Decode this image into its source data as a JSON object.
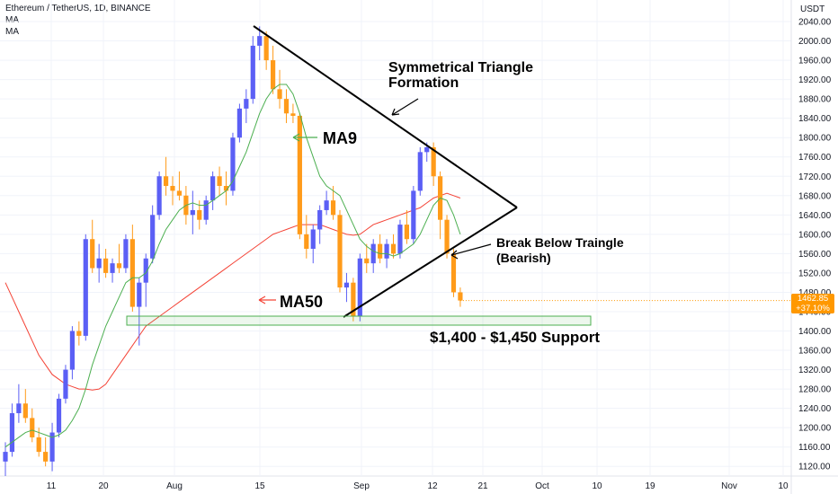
{
  "header": {
    "title": "Ethereum / TetherUS, 1D, BINANCE",
    "ma1": "MA",
    "ma2": "MA"
  },
  "axis": {
    "unit": "USDT",
    "price_label": "1462.85",
    "price_change": "+37.10%"
  },
  "colors": {
    "up": "#5b5ff5",
    "down": "#ff9b1a",
    "ma9": "#4caf50",
    "ma50": "#f44336",
    "support": "#4caf50",
    "price_tag": "#ff9800",
    "bearish": "#e8542a"
  },
  "annotations": {
    "triangle_title_1": "Symmetrical Triangle",
    "triangle_title_2": "Formation",
    "ma9": "MA9",
    "ma50": "MA50",
    "break": "Break Below Traingle",
    "bearish": "(Bearish)",
    "support": "$1,400 - $1,450 Support"
  },
  "chart_data": {
    "type": "candlestick",
    "title": "Ethereum / TetherUS, 1D, BINANCE",
    "ylim": [
      1100,
      2060
    ],
    "y_ticks": [
      2040,
      2000,
      1960,
      1920,
      1880,
      1840,
      1800,
      1760,
      1720,
      1680,
      1640,
      1600,
      1560,
      1520,
      1480,
      1440,
      1400,
      1360,
      1320,
      1280,
      1240,
      1200,
      1160,
      1120
    ],
    "x_tick_labels": [
      "11",
      "20",
      "Aug",
      "15",
      "Sep",
      "12",
      "21",
      "Oct",
      "10",
      "19",
      "Nov",
      "10"
    ],
    "candles": [
      {
        "o": 1130,
        "h": 1170,
        "l": 1100,
        "c": 1150
      },
      {
        "o": 1150,
        "h": 1250,
        "l": 1140,
        "c": 1230
      },
      {
        "o": 1230,
        "h": 1290,
        "l": 1210,
        "c": 1250
      },
      {
        "o": 1250,
        "h": 1280,
        "l": 1210,
        "c": 1220
      },
      {
        "o": 1220,
        "h": 1240,
        "l": 1170,
        "c": 1180
      },
      {
        "o": 1180,
        "h": 1200,
        "l": 1140,
        "c": 1150
      },
      {
        "o": 1150,
        "h": 1180,
        "l": 1120,
        "c": 1130
      },
      {
        "o": 1130,
        "h": 1210,
        "l": 1110,
        "c": 1190
      },
      {
        "o": 1190,
        "h": 1270,
        "l": 1180,
        "c": 1260
      },
      {
        "o": 1260,
        "h": 1330,
        "l": 1250,
        "c": 1320
      },
      {
        "o": 1320,
        "h": 1410,
        "l": 1300,
        "c": 1400
      },
      {
        "o": 1400,
        "h": 1420,
        "l": 1370,
        "c": 1390
      },
      {
        "o": 1390,
        "h": 1600,
        "l": 1380,
        "c": 1590
      },
      {
        "o": 1590,
        "h": 1630,
        "l": 1520,
        "c": 1530
      },
      {
        "o": 1530,
        "h": 1580,
        "l": 1500,
        "c": 1550
      },
      {
        "o": 1550,
        "h": 1570,
        "l": 1510,
        "c": 1520
      },
      {
        "o": 1520,
        "h": 1550,
        "l": 1500,
        "c": 1540
      },
      {
        "o": 1540,
        "h": 1580,
        "l": 1520,
        "c": 1530
      },
      {
        "o": 1530,
        "h": 1600,
        "l": 1520,
        "c": 1590
      },
      {
        "o": 1590,
        "h": 1620,
        "l": 1440,
        "c": 1450
      },
      {
        "o": 1450,
        "h": 1510,
        "l": 1370,
        "c": 1500
      },
      {
        "o": 1500,
        "h": 1560,
        "l": 1450,
        "c": 1550
      },
      {
        "o": 1550,
        "h": 1660,
        "l": 1540,
        "c": 1640
      },
      {
        "o": 1640,
        "h": 1730,
        "l": 1630,
        "c": 1720
      },
      {
        "o": 1720,
        "h": 1760,
        "l": 1680,
        "c": 1700
      },
      {
        "o": 1700,
        "h": 1720,
        "l": 1660,
        "c": 1690
      },
      {
        "o": 1690,
        "h": 1730,
        "l": 1670,
        "c": 1680
      },
      {
        "o": 1680,
        "h": 1700,
        "l": 1620,
        "c": 1640
      },
      {
        "o": 1640,
        "h": 1690,
        "l": 1600,
        "c": 1650
      },
      {
        "o": 1650,
        "h": 1670,
        "l": 1610,
        "c": 1630
      },
      {
        "o": 1630,
        "h": 1680,
        "l": 1620,
        "c": 1670
      },
      {
        "o": 1670,
        "h": 1730,
        "l": 1650,
        "c": 1720
      },
      {
        "o": 1720,
        "h": 1740,
        "l": 1680,
        "c": 1700
      },
      {
        "o": 1700,
        "h": 1730,
        "l": 1660,
        "c": 1690
      },
      {
        "o": 1690,
        "h": 1810,
        "l": 1680,
        "c": 1800
      },
      {
        "o": 1800,
        "h": 1870,
        "l": 1790,
        "c": 1860
      },
      {
        "o": 1860,
        "h": 1900,
        "l": 1830,
        "c": 1880
      },
      {
        "o": 1880,
        "h": 2010,
        "l": 1870,
        "c": 1990
      },
      {
        "o": 1990,
        "h": 2030,
        "l": 1960,
        "c": 2010
      },
      {
        "o": 2010,
        "h": 2020,
        "l": 1940,
        "c": 1960
      },
      {
        "o": 1960,
        "h": 1990,
        "l": 1890,
        "c": 1900
      },
      {
        "o": 1900,
        "h": 1940,
        "l": 1860,
        "c": 1880
      },
      {
        "o": 1880,
        "h": 1900,
        "l": 1830,
        "c": 1850
      },
      {
        "o": 1850,
        "h": 1870,
        "l": 1830,
        "c": 1845
      },
      {
        "o": 1845,
        "h": 1850,
        "l": 1590,
        "c": 1600
      },
      {
        "o": 1600,
        "h": 1640,
        "l": 1550,
        "c": 1570
      },
      {
        "o": 1570,
        "h": 1620,
        "l": 1540,
        "c": 1610
      },
      {
        "o": 1610,
        "h": 1660,
        "l": 1580,
        "c": 1650
      },
      {
        "o": 1650,
        "h": 1690,
        "l": 1640,
        "c": 1670
      },
      {
        "o": 1670,
        "h": 1700,
        "l": 1630,
        "c": 1640
      },
      {
        "o": 1640,
        "h": 1650,
        "l": 1480,
        "c": 1490
      },
      {
        "o": 1490,
        "h": 1520,
        "l": 1460,
        "c": 1500
      },
      {
        "o": 1500,
        "h": 1510,
        "l": 1420,
        "c": 1430
      },
      {
        "o": 1430,
        "h": 1560,
        "l": 1420,
        "c": 1550
      },
      {
        "o": 1550,
        "h": 1580,
        "l": 1520,
        "c": 1540
      },
      {
        "o": 1540,
        "h": 1590,
        "l": 1520,
        "c": 1580
      },
      {
        "o": 1580,
        "h": 1600,
        "l": 1540,
        "c": 1550
      },
      {
        "o": 1550,
        "h": 1590,
        "l": 1530,
        "c": 1580
      },
      {
        "o": 1580,
        "h": 1600,
        "l": 1550,
        "c": 1560
      },
      {
        "o": 1560,
        "h": 1630,
        "l": 1550,
        "c": 1620
      },
      {
        "o": 1620,
        "h": 1650,
        "l": 1580,
        "c": 1590
      },
      {
        "o": 1590,
        "h": 1700,
        "l": 1580,
        "c": 1690
      },
      {
        "o": 1690,
        "h": 1780,
        "l": 1680,
        "c": 1770
      },
      {
        "o": 1770,
        "h": 1790,
        "l": 1750,
        "c": 1780
      },
      {
        "o": 1780,
        "h": 1790,
        "l": 1700,
        "c": 1720
      },
      {
        "o": 1720,
        "h": 1730,
        "l": 1590,
        "c": 1630
      },
      {
        "o": 1630,
        "h": 1640,
        "l": 1550,
        "c": 1560
      },
      {
        "o": 1560,
        "h": 1570,
        "l": 1470,
        "c": 1480
      },
      {
        "o": 1480,
        "h": 1490,
        "l": 1450,
        "c": 1463
      }
    ],
    "series": [
      {
        "name": "MA",
        "values": [
          1160,
          1170,
          1180,
          1190,
          1195,
          1190,
          1185,
          1180,
          1185,
          1195,
          1215,
          1240,
          1280,
          1330,
          1370,
          1410,
          1440,
          1470,
          1500,
          1510,
          1510,
          1520,
          1545,
          1580,
          1610,
          1630,
          1650,
          1660,
          1665,
          1660,
          1660,
          1670,
          1680,
          1690,
          1710,
          1740,
          1770,
          1810,
          1850,
          1880,
          1900,
          1910,
          1910,
          1890,
          1850,
          1800,
          1760,
          1720,
          1700,
          1690,
          1680,
          1650,
          1620,
          1590,
          1575,
          1565,
          1560,
          1560,
          1555,
          1560,
          1570,
          1580,
          1600,
          1630,
          1660,
          1675,
          1670,
          1640,
          1600
        ]
      },
      {
        "name": "MA",
        "values": [
          1500,
          1470,
          1440,
          1410,
          1380,
          1350,
          1330,
          1310,
          1300,
          1290,
          1285,
          1280,
          1280,
          1278,
          1280,
          1290,
          1310,
          1330,
          1350,
          1370,
          1390,
          1410,
          1420,
          1430,
          1440,
          1450,
          1460,
          1470,
          1480,
          1490,
          1500,
          1510,
          1520,
          1530,
          1540,
          1550,
          1560,
          1570,
          1580,
          1590,
          1600,
          1605,
          1610,
          1615,
          1620,
          1620,
          1620,
          1620,
          1615,
          1610,
          1605,
          1600,
          1598,
          1600,
          1610,
          1620,
          1625,
          1630,
          1635,
          1640,
          1645,
          1650,
          1655,
          1665,
          1675,
          1680,
          1685,
          1680,
          1675
        ]
      }
    ]
  }
}
